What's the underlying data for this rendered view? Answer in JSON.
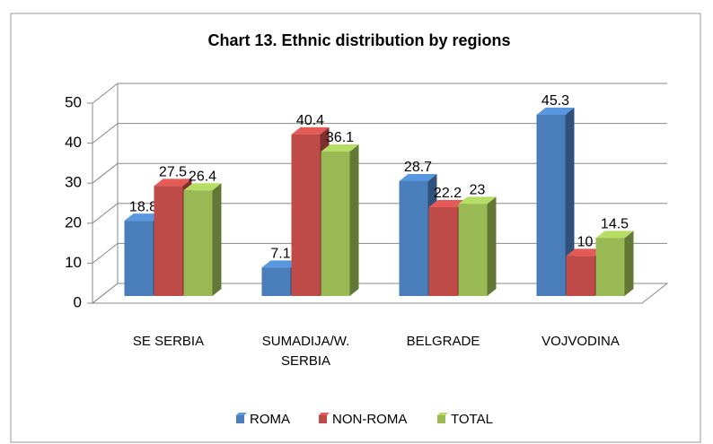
{
  "chart_data": {
    "type": "bar3d",
    "title": "Chart 13. Ethnic distribution by regions",
    "categories": [
      "SE SERBIA",
      "SUMADIJA/W. SERBIA",
      "BELGRADE",
      "VOJVODINA"
    ],
    "series": [
      {
        "name": "ROMA",
        "color": "#4a7ebb",
        "values": [
          18.8,
          7.1,
          28.7,
          45.3
        ]
      },
      {
        "name": "NON-ROMA",
        "color": "#be4b48",
        "values": [
          27.5,
          40.4,
          22.2,
          10
        ]
      },
      {
        "name": "TOTAL",
        "color": "#98b954",
        "values": [
          26.4,
          36.1,
          23,
          14.5
        ]
      }
    ],
    "ylim": [
      0,
      50
    ],
    "yticks": [
      0,
      10,
      20,
      30,
      40,
      50
    ],
    "grid": true,
    "legend": "bottom"
  }
}
